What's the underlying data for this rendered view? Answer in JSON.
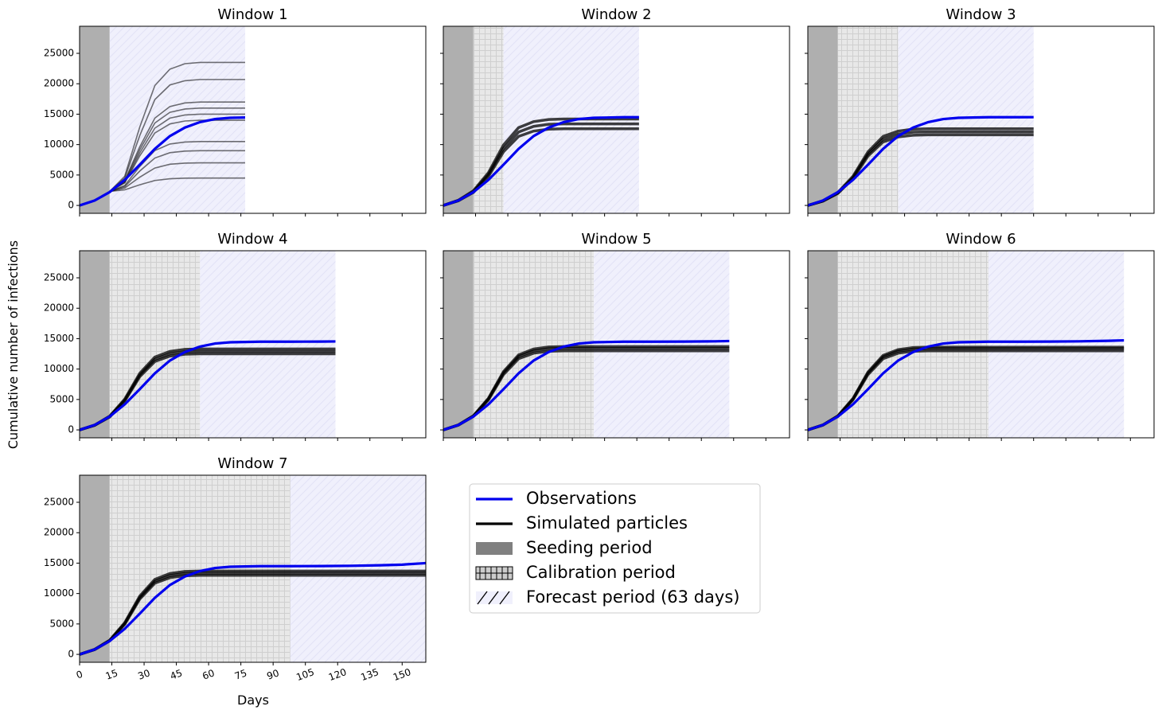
{
  "chart_data": {
    "type": "line",
    "ylabel": "Cumulative number of infections",
    "xlabel": "Days",
    "xlim": [
      0,
      161
    ],
    "ylim": [
      -1300,
      29450
    ],
    "xticks": [
      0,
      15,
      30,
      45,
      60,
      75,
      90,
      105,
      120,
      135,
      150
    ],
    "yticks": [
      0,
      5000,
      10000,
      15000,
      20000,
      25000
    ],
    "observations": {
      "name": "Observations",
      "color": "#0000ee",
      "x": [
        0,
        7,
        14,
        21,
        28,
        35,
        42,
        49,
        56,
        63,
        70,
        84,
        98,
        112,
        126,
        140,
        150,
        161
      ],
      "values": [
        0,
        800,
        2200,
        4200,
        6700,
        9300,
        11400,
        12800,
        13700,
        14200,
        14400,
        14500,
        14500,
        14520,
        14560,
        14650,
        14750,
        15000
      ]
    },
    "particles": {
      "name": "Simulated particles",
      "color": "#000000"
    },
    "seeding": {
      "name": "Seeding period",
      "color": "#afafaf",
      "start": 0,
      "end": 14
    },
    "calibration": {
      "name": "Calibration period",
      "color": "#e8e8e8"
    },
    "forecast": {
      "name": "Forecast period (63 days)",
      "color": "#f0f0fc"
    },
    "windows": [
      {
        "title": "Window 1",
        "calibration_end": 14,
        "forecast_end": 77,
        "particle_x": [
          14,
          21,
          28,
          35,
          42,
          49,
          56,
          77
        ],
        "particles": [
          [
            2300,
            4800,
            12900,
            19700,
            22400,
            23300,
            23500,
            23500
          ],
          [
            2300,
            4500,
            11500,
            17400,
            19800,
            20500,
            20700,
            20700
          ],
          [
            2300,
            4100,
            9650,
            14350,
            16250,
            16850,
            17000,
            17000
          ],
          [
            2300,
            3950,
            9150,
            13550,
            15300,
            15850,
            16000,
            16000
          ],
          [
            2300,
            3800,
            8650,
            12700,
            14350,
            14870,
            15000,
            15000
          ],
          [
            2300,
            3700,
            8150,
            11900,
            13400,
            13880,
            14000,
            14000
          ],
          [
            2300,
            3280,
            6400,
            9020,
            10090,
            10420,
            10500,
            10500
          ],
          [
            2300,
            3100,
            5650,
            7790,
            8670,
            8930,
            9000,
            9000
          ],
          [
            2300,
            2860,
            4650,
            6150,
            6770,
            6950,
            7000,
            7000
          ],
          [
            2300,
            2560,
            3400,
            4100,
            4390,
            4480,
            4500,
            4500
          ]
        ]
      },
      {
        "title": "Window 2",
        "calibration_end": 28,
        "forecast_end": 91,
        "particle_x": [
          0,
          7,
          14,
          21,
          28,
          35,
          42,
          49,
          56,
          161
        ],
        "particles": [
          [
            0,
            756,
            2142,
            4788,
            8820,
            11340,
            12222,
            12537,
            12600,
            12600
          ],
          [
            0,
            804,
            2278,
            5092,
            9380,
            12060,
            12998,
            13333,
            13400,
            13400
          ],
          [
            0,
            852,
            2414,
            5396,
            9940,
            12780,
            13774,
            14129,
            14200,
            14200
          ]
        ]
      },
      {
        "title": "Window 3",
        "calibration_end": 42,
        "forecast_end": 105,
        "particle_x": [
          0,
          7,
          14,
          21,
          28,
          35,
          42,
          49,
          56,
          161
        ],
        "particles": [
          [
            0,
            696,
            1972,
            4408,
            8120,
            10440,
            11252,
            11542,
            11600,
            11600
          ],
          [
            0,
            726,
            2057,
            4598,
            8470,
            10890,
            11737,
            12040,
            12100,
            12100
          ],
          [
            0,
            756,
            2142,
            4788,
            8820,
            11340,
            12222,
            12537,
            12600,
            12600
          ]
        ]
      },
      {
        "title": "Window 4",
        "calibration_end": 56,
        "forecast_end": 119,
        "particle_x": [
          0,
          7,
          14,
          21,
          28,
          35,
          42,
          49,
          56,
          161
        ],
        "particles": [
          [
            0,
            750,
            2125,
            4750,
            8750,
            11250,
            12125,
            12438,
            12500,
            12500
          ],
          [
            0,
            774,
            2193,
            4902,
            9030,
            11610,
            12513,
            12836,
            12900,
            12900
          ],
          [
            0,
            798,
            2261,
            5054,
            9310,
            11970,
            12901,
            13234,
            13300,
            13300
          ]
        ]
      },
      {
        "title": "Window 5",
        "calibration_end": 70,
        "forecast_end": 133,
        "particle_x": [
          0,
          7,
          14,
          21,
          28,
          35,
          42,
          49,
          56,
          161
        ],
        "particles": [
          [
            0,
            780,
            2210,
            4940,
            9100,
            11700,
            12610,
            12935,
            13000,
            13000
          ],
          [
            0,
            804,
            2278,
            5092,
            9380,
            12060,
            12998,
            13333,
            13400,
            13400
          ],
          [
            0,
            822,
            2329,
            5206,
            9590,
            12330,
            13289,
            13632,
            13700,
            13700
          ]
        ]
      },
      {
        "title": "Window 6",
        "calibration_end": 84,
        "forecast_end": 147,
        "particle_x": [
          0,
          7,
          14,
          21,
          28,
          35,
          42,
          49,
          56,
          161
        ],
        "particles": [
          [
            0,
            780,
            2210,
            4940,
            9100,
            11700,
            12610,
            12935,
            13000,
            13000
          ],
          [
            0,
            801,
            2270,
            5073,
            9345,
            12015,
            12950,
            13283,
            13350,
            13350
          ],
          [
            0,
            816,
            2312,
            5168,
            9520,
            12240,
            13192,
            13532,
            13600,
            13600
          ]
        ]
      },
      {
        "title": "Window 7",
        "calibration_end": 98,
        "forecast_end": 161,
        "particle_x": [
          0,
          7,
          14,
          21,
          28,
          35,
          42,
          49,
          56,
          161
        ],
        "particles": [
          [
            0,
            780,
            2210,
            4940,
            9100,
            11700,
            12610,
            12935,
            13000,
            13000
          ],
          [
            0,
            801,
            2270,
            5073,
            9345,
            12015,
            12950,
            13283,
            13350,
            13350
          ],
          [
            0,
            822,
            2329,
            5206,
            9590,
            12330,
            13289,
            13632,
            13700,
            13700
          ]
        ]
      }
    ]
  }
}
